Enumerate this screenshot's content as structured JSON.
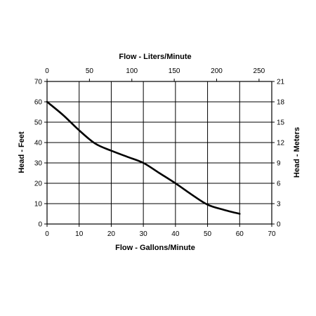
{
  "chart_data": {
    "type": "line",
    "title": "",
    "xlabel": "Flow - Gallons/Minute",
    "ylabel": "Head - Feet",
    "xlabel_top": "Flow - Liters/Minute",
    "ylabel_right": "Head - Meters",
    "xlim": [
      0,
      70
    ],
    "ylim": [
      0,
      70
    ],
    "xlim_top": [
      0,
      265
    ],
    "ylim_right": [
      0,
      21
    ],
    "x_ticks": [
      0,
      10,
      20,
      30,
      40,
      50,
      60,
      70
    ],
    "y_ticks": [
      0,
      10,
      20,
      30,
      40,
      50,
      60,
      70
    ],
    "x_ticks_top": [
      0,
      50,
      100,
      150,
      200,
      250
    ],
    "y_ticks_right": [
      0,
      3,
      6,
      9,
      12,
      15,
      18,
      21
    ],
    "grid": true,
    "legend": "none",
    "line_color": "#000000",
    "series": [
      {
        "x": [
          0,
          5,
          10,
          15,
          20,
          25,
          30,
          35,
          40,
          45,
          50,
          55,
          60
        ],
        "y": [
          60,
          53.5,
          46,
          39.5,
          36,
          33,
          30,
          25,
          20,
          14.5,
          9.5,
          7,
          5
        ]
      }
    ]
  }
}
